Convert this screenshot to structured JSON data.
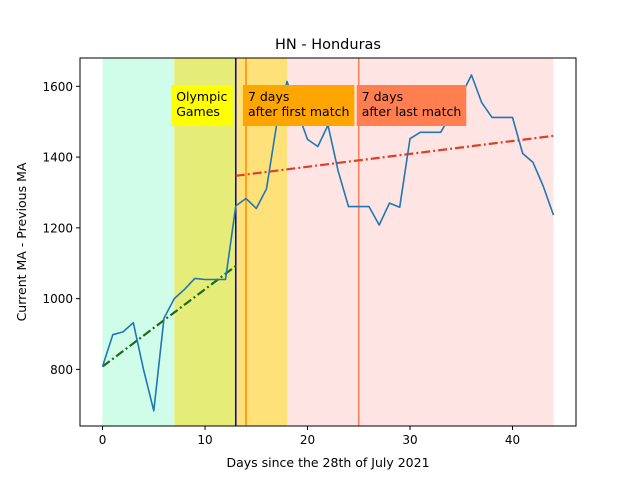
{
  "chart_data": {
    "type": "line",
    "title": "HN - Honduras",
    "xlabel": "Days since the 28th of July 2021",
    "ylabel": "Current MA - Previous MA",
    "xlim": [
      -2.2,
      46.2
    ],
    "ylim": [
      640,
      1680
    ],
    "xticks": [
      0,
      10,
      20,
      30,
      40
    ],
    "yticks": [
      800,
      1000,
      1200,
      1400,
      1600
    ],
    "grid": false,
    "series": [
      {
        "color": "#1f77b4",
        "x": [
          0,
          1,
          2,
          3,
          4,
          5,
          6,
          7,
          8,
          9,
          10,
          11,
          12,
          13,
          14,
          15,
          16,
          17,
          18,
          19,
          20,
          21,
          22,
          23,
          24,
          25,
          26,
          27,
          28,
          29,
          30,
          31,
          32,
          33,
          34,
          35,
          36,
          37,
          38,
          39,
          40,
          41,
          42,
          43,
          44
        ],
        "y": [
          808,
          898,
          906,
          932,
          800,
          683,
          945,
          1000,
          1026,
          1057,
          1054,
          1054,
          1054,
          1262,
          1283,
          1255,
          1310,
          1495,
          1614,
          1530,
          1450,
          1430,
          1490,
          1360,
          1260,
          1260,
          1260,
          1208,
          1270,
          1258,
          1452,
          1470,
          1470,
          1470,
          1520,
          1574,
          1632,
          1554,
          1512,
          1512,
          1512,
          1410,
          1385,
          1318,
          1236
        ]
      }
    ],
    "trend_lines": [
      {
        "color": "#1a6b1a",
        "x": [
          0,
          13
        ],
        "y": [
          808,
          1092
        ]
      },
      {
        "color": "#d9412b",
        "x": [
          13,
          44
        ],
        "y": [
          1347,
          1460
        ]
      }
    ],
    "bands": [
      {
        "x0": 0,
        "x1": 7,
        "color": "#d0fdea"
      },
      {
        "x0": 7,
        "x1": 13,
        "color": "#e6ec78"
      },
      {
        "x0": 13,
        "x1": 18,
        "color": "#ffe17a"
      },
      {
        "x0": 18,
        "x1": 44,
        "color": "#ffe4e4"
      }
    ],
    "vlines": [
      {
        "x": 13,
        "color": "#00008b"
      },
      {
        "x": 14,
        "color": "#ff8c00"
      },
      {
        "x": 25,
        "color": "#fa7f5a"
      }
    ],
    "annotations": [
      {
        "lines": [
          "Olympic",
          "Games"
        ],
        "x": 6.7,
        "bg": "#ffff00"
      },
      {
        "lines": [
          "7 days",
          "after first match"
        ],
        "x": 13.7,
        "bg": "#ffa500"
      },
      {
        "lines": [
          "7 days",
          "after last match"
        ],
        "x": 24.8,
        "bg": "#ff7f50"
      }
    ]
  }
}
